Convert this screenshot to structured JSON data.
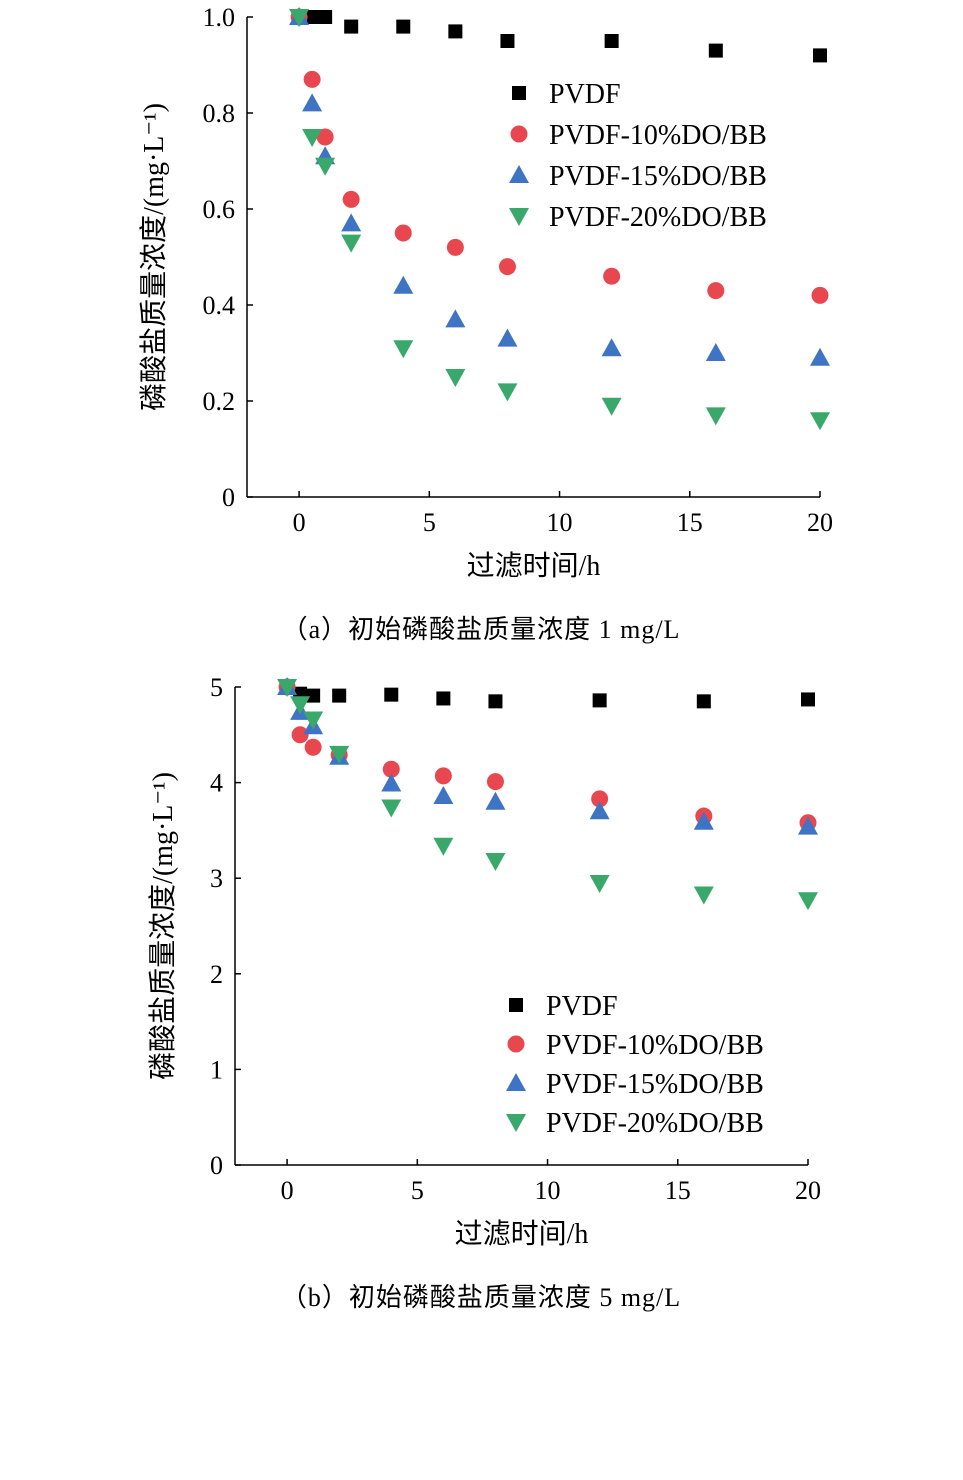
{
  "chart_data": [
    {
      "type": "scatter",
      "caption": "（a）初始磷酸盐质量浓度 1 mg/L",
      "xlabel": "过滤时间/h",
      "ylabel": "磷酸盐质量浓度/(mg·L⁻¹)",
      "xlim": [
        -2,
        20
      ],
      "ylim": [
        0,
        1.0
      ],
      "xticks": [
        "0",
        "5",
        "10",
        "15",
        "20"
      ],
      "yticks": [
        "0",
        "0.2",
        "0.4",
        "0.6",
        "0.8",
        "1.0"
      ],
      "legend_position": "upper-right",
      "series": [
        {
          "name": "PVDF",
          "marker": "square",
          "color": "#000000",
          "x": [
            0,
            0.5,
            1,
            2,
            4,
            6,
            8,
            12,
            16,
            20
          ],
          "y": [
            1.0,
            1.0,
            1.0,
            0.98,
            0.98,
            0.97,
            0.95,
            0.95,
            0.93,
            0.92
          ]
        },
        {
          "name": "PVDF-10%DO/BB",
          "marker": "circle",
          "color": "#e8474f",
          "x": [
            0,
            0.5,
            1,
            2,
            4,
            6,
            8,
            12,
            16,
            20
          ],
          "y": [
            1.0,
            0.87,
            0.75,
            0.62,
            0.55,
            0.52,
            0.48,
            0.46,
            0.43,
            0.42
          ]
        },
        {
          "name": "PVDF-15%DO/BB",
          "marker": "triangle-up",
          "color": "#3f74c4",
          "x": [
            0,
            0.5,
            1,
            2,
            4,
            6,
            8,
            12,
            16,
            20
          ],
          "y": [
            1.0,
            0.82,
            0.71,
            0.57,
            0.44,
            0.37,
            0.33,
            0.31,
            0.3,
            0.29
          ]
        },
        {
          "name": "PVDF-20%DO/BB",
          "marker": "triangle-down",
          "color": "#3aa86b",
          "x": [
            0,
            0.5,
            1,
            2,
            4,
            6,
            8,
            12,
            16,
            20
          ],
          "y": [
            1.0,
            0.75,
            0.69,
            0.53,
            0.31,
            0.25,
            0.22,
            0.19,
            0.17,
            0.16
          ]
        }
      ]
    },
    {
      "type": "scatter",
      "caption": "（b）初始磷酸盐质量浓度 5 mg/L",
      "xlabel": "过滤时间/h",
      "ylabel": "磷酸盐质量浓度/(mg·L⁻¹)",
      "xlim": [
        -2,
        20
      ],
      "ylim": [
        0,
        5
      ],
      "xticks": [
        "0",
        "5",
        "10",
        "15",
        "20"
      ],
      "yticks": [
        "0",
        "1",
        "2",
        "3",
        "4",
        "5"
      ],
      "legend_position": "lower-right",
      "series": [
        {
          "name": "PVDF",
          "marker": "square",
          "color": "#000000",
          "x": [
            0,
            0.5,
            1,
            2,
            4,
            6,
            8,
            12,
            16,
            20
          ],
          "y": [
            5.0,
            4.93,
            4.91,
            4.91,
            4.92,
            4.88,
            4.85,
            4.86,
            4.85,
            4.87
          ]
        },
        {
          "name": "PVDF-10%DO/BB",
          "marker": "circle",
          "color": "#e8474f",
          "x": [
            0,
            0.5,
            1,
            2,
            4,
            6,
            8,
            12,
            16,
            20
          ],
          "y": [
            5.0,
            4.5,
            4.37,
            4.29,
            4.14,
            4.07,
            4.01,
            3.83,
            3.65,
            3.58
          ]
        },
        {
          "name": "PVDF-15%DO/BB",
          "marker": "triangle-up",
          "color": "#3f74c4",
          "x": [
            0,
            0.5,
            1,
            2,
            4,
            6,
            8,
            12,
            16,
            20
          ],
          "y": [
            5.0,
            4.74,
            4.59,
            4.27,
            3.99,
            3.86,
            3.8,
            3.7,
            3.59,
            3.54
          ]
        },
        {
          "name": "PVDF-20%DO/BB",
          "marker": "triangle-down",
          "color": "#3aa86b",
          "x": [
            0,
            0.5,
            1,
            2,
            4,
            6,
            8,
            12,
            16,
            20
          ],
          "y": [
            5.0,
            4.82,
            4.66,
            4.3,
            3.74,
            3.34,
            3.18,
            2.95,
            2.83,
            2.77
          ]
        }
      ]
    }
  ]
}
